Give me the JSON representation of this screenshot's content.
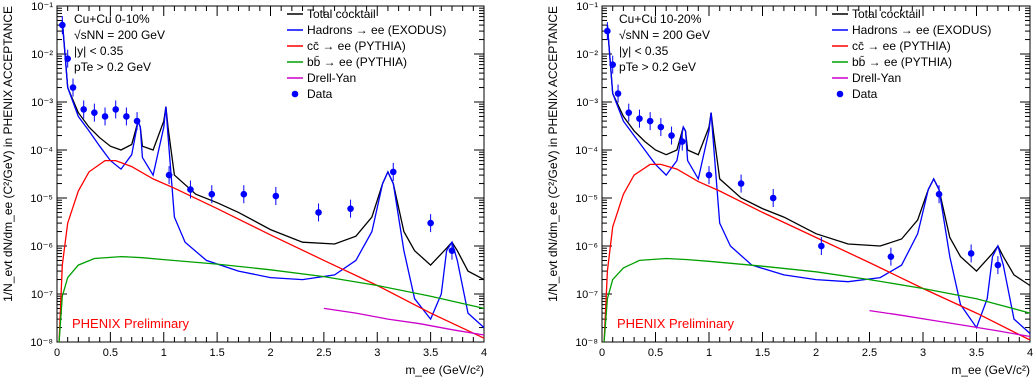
{
  "chart_data": [
    {
      "type": "line",
      "xlabel": "m_ee (GeV/c²)",
      "ylabel": "1/N_evt dN/dm_ee (C²/GeV) in PHENIX ACCEPTANCE",
      "xlim": [
        0,
        4
      ],
      "ylim": [
        1e-08,
        0.1
      ],
      "yscale": "log",
      "xticks": [
        "0",
        "0.5",
        "1",
        "1.5",
        "2",
        "2.5",
        "3",
        "3.5",
        "4"
      ],
      "yticks": [
        "10⁻⁸",
        "10⁻⁷",
        "10⁻⁶",
        "10⁻⁵",
        "10⁻⁴",
        "10⁻³",
        "10⁻²",
        "10⁻¹"
      ],
      "info": [
        "Cu+Cu 0-10%",
        "√sNN = 200 GeV",
        "|y| < 0.35",
        "pTe > 0.2 GeV"
      ],
      "preliminary": "PHENIX Preliminary",
      "legend_position": "top-right",
      "legend": [
        {
          "label": "Total cocktail",
          "color": "#000000",
          "kind": "line"
        },
        {
          "label": "Hadrons → ee (EXODUS)",
          "color": "#0000ff",
          "kind": "line"
        },
        {
          "label": "cc̄ → ee (PYTHIA)",
          "color": "#ff0000",
          "kind": "line"
        },
        {
          "label": "bb̄ → ee (PYTHIA)",
          "color": "#00a000",
          "kind": "line"
        },
        {
          "label": "Drell-Yan",
          "color": "#cc00cc",
          "kind": "line"
        },
        {
          "label": "Data",
          "color": "#0000ff",
          "kind": "marker"
        }
      ],
      "series": [
        {
          "name": "Total cocktail",
          "color": "#000000",
          "x": [
            0.05,
            0.1,
            0.2,
            0.3,
            0.4,
            0.5,
            0.6,
            0.7,
            0.76,
            0.78,
            0.8,
            0.9,
            1.0,
            1.02,
            1.04,
            1.1,
            1.3,
            1.5,
            1.7,
            2.0,
            2.3,
            2.6,
            2.8,
            2.95,
            3.05,
            3.1,
            3.15,
            3.25,
            3.35,
            3.5,
            3.65,
            3.7,
            3.75,
            3.85,
            4.0
          ],
          "y": [
            0.05,
            0.002,
            0.0006,
            0.0003,
            0.00018,
            0.00012,
            0.0001,
            0.00013,
            0.0004,
            0.0003,
            0.00012,
            0.0001,
            0.0004,
            0.0008,
            0.0003,
            3e-05,
            1.2e-05,
            8e-06,
            5e-06,
            2.2e-06,
            1.2e-06,
            1.1e-06,
            1.6e-06,
            4e-06,
            2e-05,
            3.5e-05,
            2e-05,
            2e-06,
            8e-07,
            4e-07,
            9e-07,
            1.2e-06,
            8e-07,
            3e-07,
            2e-07
          ]
        },
        {
          "name": "Hadrons → ee (EXODUS)",
          "color": "#0000ff",
          "x": [
            0.05,
            0.1,
            0.2,
            0.3,
            0.4,
            0.5,
            0.6,
            0.7,
            0.76,
            0.78,
            0.8,
            0.9,
            1.0,
            1.02,
            1.04,
            1.1,
            1.2,
            1.4,
            1.7,
            2.0,
            2.3,
            2.6,
            2.8,
            2.95,
            3.05,
            3.1,
            3.15,
            3.25,
            3.35,
            3.5,
            3.6,
            3.65,
            3.7,
            3.75,
            3.85,
            4.0
          ],
          "y": [
            0.05,
            0.002,
            0.0005,
            0.00025,
            0.00012,
            6e-05,
            4e-05,
            8e-05,
            0.0004,
            0.0003,
            7e-05,
            3e-05,
            0.0003,
            0.0008,
            0.0002,
            4e-06,
            1.2e-06,
            5e-07,
            3e-07,
            2.2e-07,
            2e-07,
            2.5e-07,
            5e-07,
            2e-06,
            2e-05,
            3.5e-05,
            2e-05,
            8e-07,
            8e-08,
            3e-08,
            1e-07,
            8e-07,
            1.2e-06,
            5e-07,
            4e-08,
            2e-08
          ]
        },
        {
          "name": "cc̄ → ee (PYTHIA)",
          "color": "#ff0000",
          "x": [
            0.02,
            0.05,
            0.1,
            0.2,
            0.3,
            0.45,
            0.55,
            0.7,
            0.9,
            1.1,
            1.5,
            2.0,
            2.5,
            3.0,
            3.5,
            4.0
          ],
          "y": [
            1e-08,
            4e-07,
            3e-06,
            1.4e-05,
            3.5e-05,
            6e-05,
            6e-05,
            4.5e-05,
            2.5e-05,
            1.6e-05,
            6e-06,
            1.7e-06,
            5e-07,
            1.5e-07,
            4e-08,
            1.2e-08
          ]
        },
        {
          "name": "bb̄ → ee (PYTHIA)",
          "color": "#00a000",
          "x": [
            0.02,
            0.05,
            0.1,
            0.2,
            0.35,
            0.6,
            0.8,
            1.0,
            1.5,
            2.0,
            2.5,
            3.0,
            3.5,
            4.0
          ],
          "y": [
            1e-08,
            9e-08,
            2.2e-07,
            4e-07,
            5.5e-07,
            6e-07,
            5.7e-07,
            5.2e-07,
            4.2e-07,
            3.2e-07,
            2.3e-07,
            1.5e-07,
            9e-08,
            5e-08
          ]
        },
        {
          "name": "Drell-Yan",
          "color": "#cc00cc",
          "x": [
            2.5,
            2.8,
            3.1,
            3.4,
            3.7,
            4.0
          ],
          "y": [
            5e-08,
            4e-08,
            3e-08,
            2.4e-08,
            1.8e-08,
            1.4e-08
          ]
        }
      ],
      "data_points": {
        "x": [
          0.05,
          0.1,
          0.15,
          0.25,
          0.35,
          0.45,
          0.55,
          0.65,
          0.75,
          1.05,
          1.25,
          1.45,
          1.75,
          2.05,
          2.45,
          2.75,
          3.15,
          3.5,
          3.7
        ],
        "y": [
          0.04,
          0.008,
          0.002,
          0.0007,
          0.0006,
          0.0005,
          0.0007,
          0.0005,
          0.0004,
          3e-05,
          1.5e-05,
          1.2e-05,
          1.2e-05,
          1.1e-05,
          5e-06,
          6e-06,
          3.5e-05,
          3e-06,
          8e-07
        ]
      }
    },
    {
      "type": "line",
      "xlabel": "m_ee (GeV/c²)",
      "ylabel": "1/N_evt dN/dm_ee (C²/GeV) in PHENIX ACCEPTANCE",
      "xlim": [
        0,
        4
      ],
      "ylim": [
        1e-08,
        0.1
      ],
      "yscale": "log",
      "xticks": [
        "0",
        "0.5",
        "1",
        "1.5",
        "2",
        "2.5",
        "3",
        "3.5",
        "4"
      ],
      "yticks": [
        "10⁻⁸",
        "10⁻⁷",
        "10⁻⁶",
        "10⁻⁵",
        "10⁻⁴",
        "10⁻³",
        "10⁻²",
        "10⁻¹"
      ],
      "info": [
        "Cu+Cu 10-20%",
        "√sNN = 200 GeV",
        "|y| < 0.35",
        "pTe > 0.2 GeV"
      ],
      "preliminary": "PHENIX Preliminary",
      "legend_position": "top-right",
      "legend": [
        {
          "label": "Total cocktail",
          "color": "#000000",
          "kind": "line"
        },
        {
          "label": "Hadrons → ee (EXODUS)",
          "color": "#0000ff",
          "kind": "line"
        },
        {
          "label": "cc̄ → ee (PYTHIA)",
          "color": "#ff0000",
          "kind": "line"
        },
        {
          "label": "bb̄ → ee (PYTHIA)",
          "color": "#00a000",
          "kind": "line"
        },
        {
          "label": "Drell-Yan",
          "color": "#cc00cc",
          "kind": "line"
        },
        {
          "label": "Data",
          "color": "#0000ff",
          "kind": "marker"
        }
      ],
      "series": [
        {
          "name": "Total cocktail",
          "color": "#000000",
          "x": [
            0.05,
            0.1,
            0.2,
            0.3,
            0.4,
            0.5,
            0.6,
            0.7,
            0.76,
            0.78,
            0.8,
            0.9,
            1.0,
            1.02,
            1.04,
            1.1,
            1.3,
            1.5,
            1.7,
            2.0,
            2.3,
            2.6,
            2.8,
            2.95,
            3.05,
            3.1,
            3.15,
            3.25,
            3.35,
            3.5,
            3.65,
            3.7,
            3.75,
            3.85,
            4.0
          ],
          "y": [
            0.04,
            0.0015,
            0.0005,
            0.00025,
            0.00015,
            0.0001,
            8e-05,
            0.0001,
            0.0003,
            0.00025,
            0.0001,
            8e-05,
            0.0003,
            0.0006,
            0.00025,
            2.5e-05,
            1e-05,
            6e-06,
            4e-06,
            1.8e-06,
            1.1e-06,
            1e-06,
            1.4e-06,
            3.5e-06,
            1.5e-05,
            2.5e-05,
            1.5e-05,
            1.5e-06,
            6e-07,
            3e-07,
            7e-07,
            1e-06,
            6e-07,
            2.5e-07,
            1.5e-07
          ]
        },
        {
          "name": "Hadrons → ee (EXODUS)",
          "color": "#0000ff",
          "x": [
            0.05,
            0.1,
            0.2,
            0.3,
            0.4,
            0.5,
            0.6,
            0.7,
            0.76,
            0.78,
            0.8,
            0.9,
            1.0,
            1.02,
            1.04,
            1.1,
            1.2,
            1.4,
            1.7,
            2.0,
            2.3,
            2.6,
            2.8,
            2.95,
            3.05,
            3.1,
            3.15,
            3.25,
            3.35,
            3.5,
            3.6,
            3.65,
            3.7,
            3.75,
            3.85,
            4.0
          ],
          "y": [
            0.04,
            0.0015,
            0.0004,
            0.0002,
            0.0001,
            5e-05,
            3e-05,
            6e-05,
            0.0003,
            0.00025,
            6e-05,
            2.5e-05,
            0.00025,
            0.0006,
            0.00015,
            3e-06,
            1e-06,
            4e-07,
            2.5e-07,
            2e-07,
            1.8e-07,
            2.2e-07,
            4e-07,
            1.8e-06,
            1.5e-05,
            2.5e-05,
            1.5e-05,
            6e-07,
            6e-08,
            2e-08,
            8e-08,
            6e-07,
            1e-06,
            4e-07,
            3e-08,
            1.5e-08
          ]
        },
        {
          "name": "cc̄ → ee (PYTHIA)",
          "color": "#ff0000",
          "x": [
            0.02,
            0.05,
            0.1,
            0.2,
            0.3,
            0.45,
            0.55,
            0.7,
            0.9,
            1.1,
            1.5,
            2.0,
            2.5,
            3.0,
            3.5,
            4.0
          ],
          "y": [
            1e-08,
            3e-07,
            2.5e-06,
            1.2e-05,
            3e-05,
            5e-05,
            5e-05,
            4e-05,
            2.2e-05,
            1.4e-05,
            5e-06,
            1.5e-06,
            4.5e-07,
            1.3e-07,
            4e-08,
            1.1e-08
          ]
        },
        {
          "name": "bb̄ → ee (PYTHIA)",
          "color": "#00a000",
          "x": [
            0.02,
            0.05,
            0.1,
            0.2,
            0.35,
            0.6,
            0.8,
            1.0,
            1.5,
            2.0,
            2.5,
            3.0,
            3.5,
            4.0
          ],
          "y": [
            1e-08,
            8e-08,
            2e-07,
            3.5e-07,
            5e-07,
            5.5e-07,
            5.2e-07,
            4.8e-07,
            3.8e-07,
            2.9e-07,
            2e-07,
            1.3e-07,
            8e-08,
            4e-08
          ]
        },
        {
          "name": "Drell-Yan",
          "color": "#cc00cc",
          "x": [
            2.5,
            2.8,
            3.1,
            3.4,
            3.7,
            4.0
          ],
          "y": [
            4.5e-08,
            3.6e-08,
            2.8e-08,
            2.2e-08,
            1.7e-08,
            1.3e-08
          ]
        }
      ],
      "data_points": {
        "x": [
          0.05,
          0.1,
          0.15,
          0.25,
          0.35,
          0.45,
          0.55,
          0.65,
          0.75,
          1.0,
          1.3,
          1.6,
          2.05,
          2.7,
          3.15,
          3.45,
          3.7
        ],
        "y": [
          0.03,
          0.006,
          0.0015,
          0.0006,
          0.00045,
          0.0004,
          0.0003,
          0.0002,
          0.00015,
          3e-05,
          2e-05,
          1e-05,
          1e-06,
          6e-07,
          1.2e-05,
          7e-07,
          4e-07
        ]
      }
    }
  ]
}
